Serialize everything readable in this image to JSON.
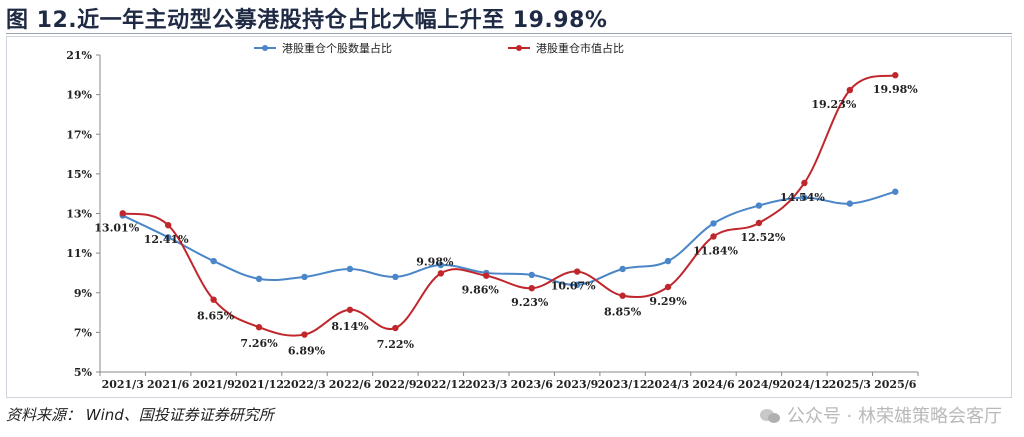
{
  "title": "图 12.近一年主动型公募港股持仓占比大幅上升至 19.98%",
  "source": "资料来源： Wind、国投证券证券研究所",
  "watermark": "公众号 · 林荣雄策略会客厅",
  "colors": {
    "blue": "#4a86c8",
    "red": "#c0272d",
    "axis": "#888888"
  },
  "chart_data": {
    "type": "line",
    "title": "",
    "xlabel": "",
    "ylabel": "",
    "ylim": [
      5,
      21
    ],
    "yticks": [
      "5%",
      "7%",
      "9%",
      "11%",
      "13%",
      "15%",
      "17%",
      "19%",
      "21%"
    ],
    "categories": [
      "2021/3",
      "2021/6",
      "2021/9",
      "2021/12",
      "2022/3",
      "2022/6",
      "2022/9",
      "2022/12",
      "2023/3",
      "2023/6",
      "2023/9",
      "2023/12",
      "2024/3",
      "2024/6",
      "2024/9",
      "2024/12",
      "2025/3",
      "2025/6"
    ],
    "legend": "top",
    "series": [
      {
        "name": "港股重仓个股数量占比",
        "color": "#4a86c8",
        "values": [
          12.9,
          11.8,
          10.6,
          9.7,
          9.8,
          10.2,
          9.8,
          10.4,
          10.0,
          9.9,
          9.4,
          10.2,
          10.6,
          12.5,
          13.4,
          13.8,
          13.5,
          14.1
        ]
      },
      {
        "name": "港股重仓市值占比",
        "color": "#c0272d",
        "values": [
          13.01,
          12.41,
          8.65,
          7.26,
          6.89,
          8.14,
          7.22,
          9.98,
          9.86,
          9.23,
          10.07,
          8.85,
          9.29,
          11.84,
          12.52,
          14.54,
          19.23,
          19.98
        ],
        "data_labels": [
          "13.01%",
          "12.41%",
          "8.65%",
          "7.26%",
          "6.89%",
          "8.14%",
          "7.22%",
          "9.98%",
          "9.86%",
          "9.23%",
          "10.07%",
          "8.85%",
          "9.29%",
          "11.84%",
          "12.52%",
          "14.54%",
          "19.23%",
          "19.98%"
        ]
      }
    ]
  }
}
